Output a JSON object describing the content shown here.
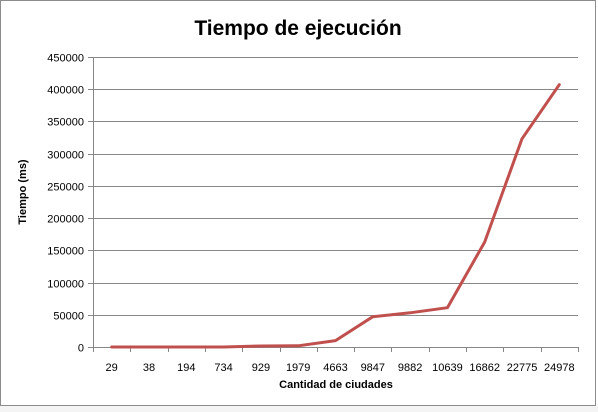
{
  "chart_data": {
    "type": "line",
    "title": "Tiempo de ejecución",
    "xlabel": "Cantidad  de ciudades",
    "ylabel": "Tiempo (ms)",
    "categories": [
      "29",
      "38",
      "194",
      "734",
      "929",
      "1979",
      "4663",
      "9847",
      "9882",
      "10639",
      "16862",
      "22775",
      "24978"
    ],
    "series": [
      {
        "values": [
          0,
          0,
          0,
          0,
          1500,
          1800,
          10000,
          47000,
          53000,
          61000,
          163000,
          323000,
          407000
        ],
        "color": "#c0504d"
      }
    ],
    "ylim": [
      0,
      450000
    ],
    "yticks": [
      "0",
      "50000",
      "100000",
      "150000",
      "200000",
      "250000",
      "300000",
      "350000",
      "400000",
      "450000"
    ],
    "grid": true,
    "legend": "none"
  }
}
